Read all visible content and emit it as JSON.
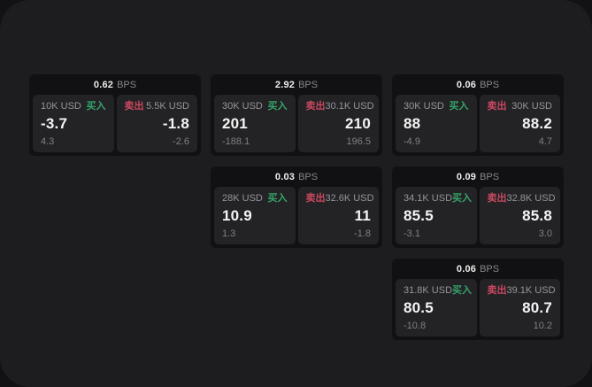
{
  "units": {
    "bps": "BPS"
  },
  "labels": {
    "buy": "买入",
    "sell": "卖出"
  },
  "colors": {
    "page_bg": "#1d1d1f",
    "backdrop": "#121214",
    "card_bg": "#111113",
    "panel_bg": "#232326",
    "buy_green": "#35a468",
    "sell_red": "#c9485f",
    "text_primary": "#f4f4f4",
    "text_muted": "#87878c"
  },
  "cards": [
    {
      "bps": "0.62",
      "grid": {
        "row": 1,
        "col": 1
      },
      "buy": {
        "amount": "10K USD",
        "price": "-3.7",
        "sub": "4.3"
      },
      "sell": {
        "amount": "5.5K USD",
        "price": "-1.8",
        "sub": "-2.6"
      }
    },
    {
      "bps": "2.92",
      "grid": {
        "row": 1,
        "col": 2
      },
      "buy": {
        "amount": "30K USD",
        "price": "201",
        "sub": "-188.1"
      },
      "sell": {
        "amount": "30.1K USD",
        "price": "210",
        "sub": "196.5"
      }
    },
    {
      "bps": "0.06",
      "grid": {
        "row": 1,
        "col": 3
      },
      "buy": {
        "amount": "30K USD",
        "price": "88",
        "sub": "-4.9"
      },
      "sell": {
        "amount": "30K USD",
        "price": "88.2",
        "sub": "4.7"
      }
    },
    {
      "bps": "0.03",
      "grid": {
        "row": 2,
        "col": 2
      },
      "buy": {
        "amount": "28K USD",
        "price": "10.9",
        "sub": "1.3"
      },
      "sell": {
        "amount": "32.6K USD",
        "price": "11",
        "sub": "-1.8"
      }
    },
    {
      "bps": "0.09",
      "grid": {
        "row": 2,
        "col": 3
      },
      "buy": {
        "amount": "34.1K USD",
        "price": "85.5",
        "sub": "-3.1"
      },
      "sell": {
        "amount": "32.8K USD",
        "price": "85.8",
        "sub": "3.0"
      }
    },
    {
      "bps": "0.06",
      "grid": {
        "row": 3,
        "col": 3
      },
      "buy": {
        "amount": "31.8K USD",
        "price": "80.5",
        "sub": "-10.8"
      },
      "sell": {
        "amount": "39.1K USD",
        "price": "80.7",
        "sub": "10.2"
      }
    }
  ]
}
